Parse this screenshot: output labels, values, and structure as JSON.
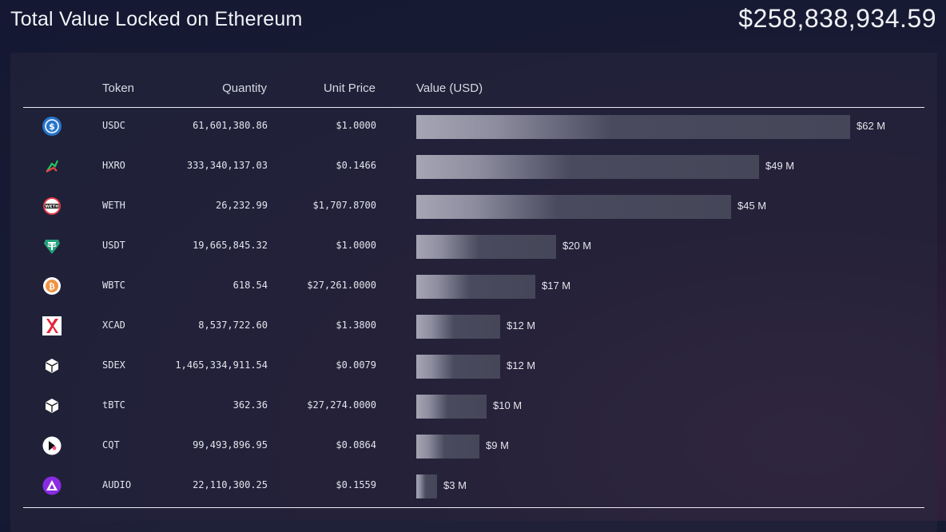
{
  "title": "Total Value Locked on Ethereum",
  "total_value": "$258,838,934.59",
  "columns": {
    "token": "Token",
    "quantity": "Quantity",
    "unit_price": "Unit Price",
    "value": "Value (USD)"
  },
  "rows": [
    {
      "symbol": "USDC",
      "quantity": "61,601,380.86",
      "price": "$1.0000",
      "value_label": "$62 M",
      "value_musd": 62,
      "icon": "usdc-icon"
    },
    {
      "symbol": "HXRO",
      "quantity": "333,340,137.03",
      "price": "$0.1466",
      "value_label": "$49 M",
      "value_musd": 49,
      "icon": "hxro-icon"
    },
    {
      "symbol": "WETH",
      "quantity": "26,232.99",
      "price": "$1,707.8700",
      "value_label": "$45 M",
      "value_musd": 45,
      "icon": "weth-icon"
    },
    {
      "symbol": "USDT",
      "quantity": "19,665,845.32",
      "price": "$1.0000",
      "value_label": "$20 M",
      "value_musd": 20,
      "icon": "usdt-icon"
    },
    {
      "symbol": "WBTC",
      "quantity": "618.54",
      "price": "$27,261.0000",
      "value_label": "$17 M",
      "value_musd": 17,
      "icon": "wbtc-icon"
    },
    {
      "symbol": "XCAD",
      "quantity": "8,537,722.60",
      "price": "$1.3800",
      "value_label": "$12 M",
      "value_musd": 12,
      "icon": "xcad-icon"
    },
    {
      "symbol": "SDEX",
      "quantity": "1,465,334,911.54",
      "price": "$0.0079",
      "value_label": "$12 M",
      "value_musd": 12,
      "icon": "sdex-icon"
    },
    {
      "symbol": "tBTC",
      "quantity": "362.36",
      "price": "$27,274.0000",
      "value_label": "$10 M",
      "value_musd": 10,
      "icon": "tbtc-icon"
    },
    {
      "symbol": "CQT",
      "quantity": "99,493,896.95",
      "price": "$0.0864",
      "value_label": "$9 M",
      "value_musd": 9,
      "icon": "cqt-icon"
    },
    {
      "symbol": "AUDIO",
      "quantity": "22,110,300.25",
      "price": "$0.1559",
      "value_label": "$3 M",
      "value_musd": 3,
      "icon": "audio-icon"
    }
  ],
  "colors": {
    "usdc": "#2775ca",
    "usdt": "#26a17b",
    "wbtc": "#f09242",
    "xcad": "#e6233a",
    "audio": "#8a2be2"
  }
}
